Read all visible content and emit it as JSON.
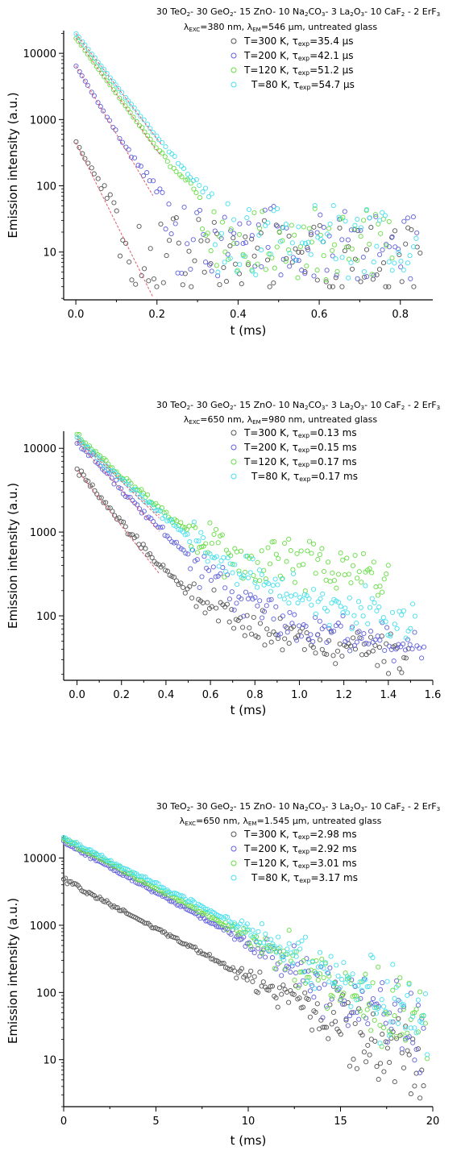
{
  "chart_data": [
    {
      "type": "scatter",
      "yscale": "log",
      "title_lines": [
        [
          {
            "t": "30 TeO"
          },
          {
            "t": "2",
            "s": "sub"
          },
          {
            "t": "- 30 GeO"
          },
          {
            "t": "2",
            "s": "sub"
          },
          {
            "t": "- 15 ZnO- 10 Na"
          },
          {
            "t": "2",
            "s": "sub"
          },
          {
            "t": "CO"
          },
          {
            "t": "3",
            "s": "sub"
          },
          {
            "t": "- 3 La"
          },
          {
            "t": "2",
            "s": "sub"
          },
          {
            "t": "O"
          },
          {
            "t": "3",
            "s": "sub"
          },
          {
            "t": "- 10 CaF"
          },
          {
            "t": "2",
            "s": "sub"
          },
          {
            "t": " - 2 ErF"
          },
          {
            "t": "3",
            "s": "sub"
          }
        ],
        [
          {
            "t": "λ"
          },
          {
            "t": "EXC",
            "s": "sub"
          },
          {
            "t": "=380 nm, λ"
          },
          {
            "t": "EM",
            "s": "sub"
          },
          {
            "t": "=546 µm, untreated glass"
          }
        ]
      ],
      "xlabel": "t (ms)",
      "ylabel": "Emission intensity (a.u.)",
      "xlim": [
        -0.03,
        0.88
      ],
      "ylim": [
        1.9,
        22000
      ],
      "xticks": [
        "0.0",
        "0.2",
        "0.4",
        "0.6",
        "0.8"
      ],
      "yticks": [
        "10",
        "100",
        "1000",
        "10000"
      ],
      "legend_position": "top-right",
      "series": [
        {
          "name": [
            {
              "t": "T=300 K, τ"
            },
            {
              "t": "exp",
              "s": "sub"
            },
            {
              "t": "=35.4 µs"
            }
          ],
          "color": "#555555",
          "tau": 0.0354,
          "i0": 450,
          "t_end": 0.85,
          "noise": 7.5,
          "fit": [
            0.0,
            0.19
          ]
        },
        {
          "name": [
            {
              "t": "T=200 K, τ"
            },
            {
              "t": "exp",
              "s": "sub"
            },
            {
              "t": "=42.1 µs"
            }
          ],
          "color": "#6060dd",
          "tau": 0.0421,
          "i0": 6500,
          "t_end": 0.84,
          "noise": 13,
          "fit": [
            0.0,
            0.19
          ]
        },
        {
          "name": [
            {
              "t": "T=120 K, τ"
            },
            {
              "t": "exp",
              "s": "sub"
            },
            {
              "t": "=51.2 µs"
            }
          ],
          "color": "#66dd44",
          "tau": 0.0512,
          "i0": 17000,
          "t_end": 0.78,
          "noise": 13,
          "fit": [
            0.0,
            0.21
          ]
        },
        {
          "name": [
            {
              "t": "T=80 K, τ"
            },
            {
              "t": "exp",
              "s": "sub"
            },
            {
              "t": "=54.7 µs"
            }
          ],
          "color": "#44e0ee",
          "tau": 0.0547,
          "i0": 20000,
          "t_end": 0.84,
          "noise": 14,
          "fit": [
            0.0,
            0.21
          ]
        }
      ]
    },
    {
      "type": "scatter",
      "yscale": "log",
      "title_lines": [
        [
          {
            "t": "30 TeO"
          },
          {
            "t": "2",
            "s": "sub"
          },
          {
            "t": "- 30 GeO"
          },
          {
            "t": "2",
            "s": "sub"
          },
          {
            "t": "- 15 ZnO- 10 Na"
          },
          {
            "t": "2",
            "s": "sub"
          },
          {
            "t": "CO"
          },
          {
            "t": "3",
            "s": "sub"
          },
          {
            "t": "- 3 La"
          },
          {
            "t": "2",
            "s": "sub"
          },
          {
            "t": "O"
          },
          {
            "t": "3",
            "s": "sub"
          },
          {
            "t": "- 10 CaF"
          },
          {
            "t": "2",
            "s": "sub"
          },
          {
            "t": " - 2 ErF"
          },
          {
            "t": "3",
            "s": "sub"
          }
        ],
        [
          {
            "t": "λ"
          },
          {
            "t": "EXC",
            "s": "sub"
          },
          {
            "t": "=650 nm, λ"
          },
          {
            "t": "EM",
            "s": "sub"
          },
          {
            "t": "=980 nm, untreated glass"
          }
        ]
      ],
      "xlabel": "t (ms)",
      "ylabel": "Emission intensity (a.u.)",
      "xlim": [
        -0.06,
        1.6
      ],
      "ylim": [
        17,
        16000
      ],
      "xticks": [
        "0.0",
        "0.2",
        "0.4",
        "0.6",
        "0.8",
        "1.0",
        "1.2",
        "1.4",
        "1.6"
      ],
      "yticks": [
        "100",
        "1000",
        "10000"
      ],
      "legend_position": "top-right",
      "series": [
        {
          "name": [
            {
              "t": "T=300 K, τ"
            },
            {
              "t": "exp",
              "s": "sub"
            },
            {
              "t": "=0.13 ms"
            }
          ],
          "color": "#555555",
          "tau": 0.13,
          "i0": 5500,
          "floor": 120,
          "t_end": 1.49,
          "noise": 0.35,
          "fit": [
            0.0,
            0.37
          ]
        },
        {
          "name": [
            {
              "t": "T=200 K, τ"
            },
            {
              "t": "exp",
              "s": "sub"
            },
            {
              "t": "=0.15 ms"
            }
          ],
          "color": "#6060dd",
          "tau": 0.15,
          "i0": 12000,
          "floor": 150,
          "t_end": 1.56,
          "noise": 0.35,
          "fit": [
            0.0,
            0.37
          ]
        },
        {
          "name": [
            {
              "t": "T=120 K, τ"
            },
            {
              "t": "exp",
              "s": "sub"
            },
            {
              "t": "=0.17 ms"
            }
          ],
          "color": "#66dd44",
          "tau": 0.17,
          "i0": 14000,
          "floor": 500,
          "t_end": 1.4,
          "noise": 0.4,
          "fit": [
            0.0,
            0.37
          ]
        },
        {
          "name": [
            {
              "t": "T=80 K, τ"
            },
            {
              "t": "exp",
              "s": "sub"
            },
            {
              "t": "=0.17 ms"
            }
          ],
          "color": "#44e0ee",
          "tau": 0.17,
          "i0": 13000,
          "floor": 300,
          "t_end": 1.52,
          "noise": 0.35,
          "fit": [
            0.0,
            0.37
          ]
        }
      ]
    },
    {
      "type": "scatter",
      "yscale": "log",
      "title_lines": [
        [
          {
            "t": "30 TeO"
          },
          {
            "t": "2",
            "s": "sub"
          },
          {
            "t": "- 30 GeO"
          },
          {
            "t": "2",
            "s": "sub"
          },
          {
            "t": "- 15 ZnO- 10 Na"
          },
          {
            "t": "2",
            "s": "sub"
          },
          {
            "t": "CO"
          },
          {
            "t": "3",
            "s": "sub"
          },
          {
            "t": "- 3 La"
          },
          {
            "t": "2",
            "s": "sub"
          },
          {
            "t": "O"
          },
          {
            "t": "3",
            "s": "sub"
          },
          {
            "t": "- 10 CaF"
          },
          {
            "t": "2",
            "s": "sub"
          },
          {
            "t": " - 2 ErF"
          },
          {
            "t": "3",
            "s": "sub"
          }
        ],
        [
          {
            "t": "λ"
          },
          {
            "t": "EXC",
            "s": "sub"
          },
          {
            "t": "=650 nm, λ"
          },
          {
            "t": "EM",
            "s": "sub"
          },
          {
            "t": "=1.545 µm, untreated glass"
          }
        ]
      ],
      "xlabel": "t (ms)",
      "ylabel": "Emission intensity (a.u.)",
      "xlim": [
        0,
        20
      ],
      "ylim": [
        2,
        22000
      ],
      "xticks": [
        "0",
        "5",
        "10",
        "15",
        "20"
      ],
      "yticks": [
        "10",
        "100",
        "1000",
        "10000"
      ],
      "legend_position": "top-right",
      "series": [
        {
          "name": [
            {
              "t": "T=300 K, τ"
            },
            {
              "t": "exp",
              "s": "sub"
            },
            {
              "t": "=2.98 ms"
            }
          ],
          "color": "#555555",
          "tau": 2.98,
          "i0": 4800,
          "t_end": 19.5,
          "noise": 0.5,
          "fit": null
        },
        {
          "name": [
            {
              "t": "T=200 K, τ"
            },
            {
              "t": "exp",
              "s": "sub"
            },
            {
              "t": "=2.92 ms"
            }
          ],
          "color": "#6060dd",
          "tau": 2.92,
          "i0": 17000,
          "t_end": 19.5,
          "noise": 0.45,
          "fit": null
        },
        {
          "name": [
            {
              "t": "T=120 K, τ"
            },
            {
              "t": "exp",
              "s": "sub"
            },
            {
              "t": "=3.01 ms"
            }
          ],
          "color": "#66dd44",
          "tau": 3.01,
          "i0": 19000,
          "t_end": 19.7,
          "noise": 0.45,
          "fit": null
        },
        {
          "name": [
            {
              "t": "T=80 K, τ"
            },
            {
              "t": "exp",
              "s": "sub"
            },
            {
              "t": "=3.17 ms"
            }
          ],
          "color": "#44e0ee",
          "tau": 3.17,
          "i0": 20000,
          "t_end": 19.7,
          "noise": 0.45,
          "fit": null
        }
      ]
    }
  ]
}
